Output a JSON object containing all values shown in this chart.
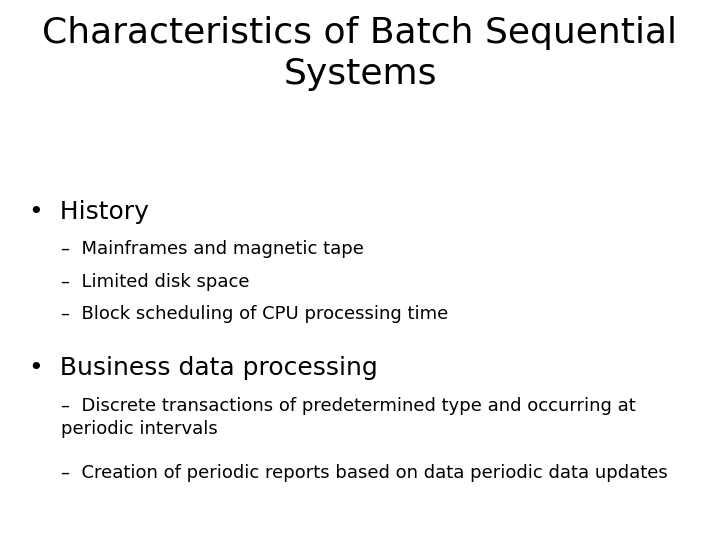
{
  "title_line1": "Characteristics of Batch Sequential",
  "title_line2": "Systems",
  "title_fontsize": 26,
  "title_fontweight": "normal",
  "background_color": "#ffffff",
  "text_color": "#000000",
  "bullet1_header": "History",
  "bullet1_header_fontsize": 18,
  "bullet1_items": [
    "Mainframes and magnetic tape",
    "Limited disk space",
    "Block scheduling of CPU processing time"
  ],
  "bullet2_header": "Business data processing",
  "bullet2_header_fontsize": 18,
  "bullet2_items": [
    "Discrete transactions of predetermined type and occurring at\nperiodic intervals",
    "Creation of periodic reports based on data periodic data updates"
  ],
  "sub_fontsize": 13,
  "dash": "–"
}
